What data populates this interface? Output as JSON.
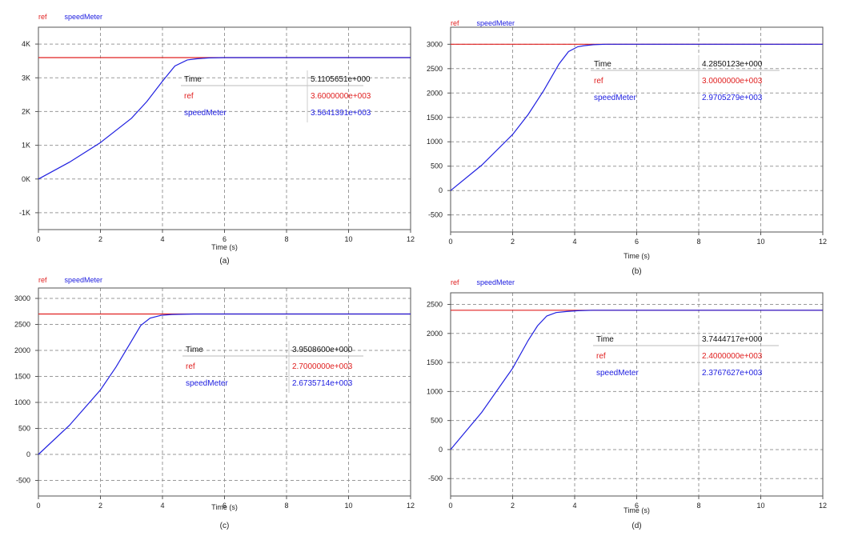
{
  "colors": {
    "ref": "#e02020",
    "meter": "#2020e0",
    "grid": "#9a9a9a",
    "frame": "#555555"
  },
  "chart_data": [
    {
      "type": "line",
      "caption": "(a)",
      "xlabel": "Time (s)",
      "xlim": [
        0,
        12
      ],
      "ylim": [
        -1500,
        4500
      ],
      "x_ticks": [
        0,
        2,
        4,
        6,
        8,
        10,
        12
      ],
      "x_tick_labels": [
        "0",
        "2",
        "4",
        "6",
        "8",
        "10",
        "12"
      ],
      "y_ticks": [
        -1000,
        0,
        1000,
        2000,
        3000,
        4000
      ],
      "y_tick_labels": [
        "-1K",
        "0K",
        "1K",
        "2K",
        "3K",
        "4K"
      ],
      "grid": true,
      "legend": [
        "ref",
        "speedMeter"
      ],
      "series": [
        {
          "name": "ref",
          "color": "#e02020",
          "x": [
            0,
            12
          ],
          "y": [
            3600,
            3600
          ]
        },
        {
          "name": "speedMeter",
          "color": "#2020e0",
          "x": [
            0,
            1,
            2,
            3,
            3.5,
            4,
            4.4,
            4.8,
            5.1,
            5.5,
            6,
            12
          ],
          "y": [
            0,
            500,
            1080,
            1800,
            2300,
            2900,
            3350,
            3530,
            3564,
            3590,
            3600,
            3600
          ]
        }
      ],
      "readout": {
        "rows": [
          {
            "label": "Time",
            "value": "5.1105651e+000"
          },
          {
            "label": "ref",
            "value": "3.6000000e+003"
          },
          {
            "label": "speedMeter",
            "value": "3.5641391e+003"
          }
        ]
      }
    },
    {
      "type": "line",
      "caption": "(b)",
      "xlabel": "Time (s)",
      "xlim": [
        0,
        12
      ],
      "ylim": [
        -850,
        3350
      ],
      "x_ticks": [
        0,
        2,
        4,
        6,
        8,
        10,
        12
      ],
      "x_tick_labels": [
        "0",
        "2",
        "4",
        "6",
        "8",
        "10",
        "12"
      ],
      "y_ticks": [
        -500,
        0,
        500,
        1000,
        1500,
        2000,
        2500,
        3000
      ],
      "y_tick_labels": [
        "-500",
        "0",
        "500",
        "1000",
        "1500",
        "2000",
        "2500",
        "3000"
      ],
      "grid": true,
      "legend": [
        "ref",
        "speedMeter"
      ],
      "series": [
        {
          "name": "ref",
          "color": "#e02020",
          "x": [
            0,
            12
          ],
          "y": [
            3000,
            3000
          ]
        },
        {
          "name": "speedMeter",
          "color": "#2020e0",
          "x": [
            0,
            1,
            2,
            2.5,
            3,
            3.5,
            3.8,
            4.1,
            4.3,
            4.6,
            5,
            12
          ],
          "y": [
            0,
            520,
            1150,
            1560,
            2050,
            2600,
            2850,
            2950,
            2971,
            2990,
            3000,
            3000
          ]
        }
      ],
      "readout": {
        "rows": [
          {
            "label": "Time",
            "value": "4.2850123e+000"
          },
          {
            "label": "ref",
            "value": "3.0000000e+003"
          },
          {
            "label": "speedMeter",
            "value": "2.9705279e+003"
          }
        ]
      }
    },
    {
      "type": "line",
      "caption": "(c)",
      "xlabel": "Time (s)",
      "xlim": [
        0,
        12
      ],
      "ylim": [
        -800,
        3200
      ],
      "x_ticks": [
        0,
        2,
        4,
        6,
        8,
        10,
        12
      ],
      "x_tick_labels": [
        "0",
        "2",
        "4",
        "6",
        "8",
        "10",
        "12"
      ],
      "y_ticks": [
        -500,
        0,
        500,
        1000,
        1500,
        2000,
        2500,
        3000
      ],
      "y_tick_labels": [
        "-500",
        "0",
        "500",
        "1000",
        "1500",
        "2000",
        "2500",
        "3000"
      ],
      "grid": true,
      "legend": [
        "ref",
        "speedMeter"
      ],
      "series": [
        {
          "name": "ref",
          "color": "#e02020",
          "x": [
            0,
            12
          ],
          "y": [
            2700,
            2700
          ]
        },
        {
          "name": "speedMeter",
          "color": "#2020e0",
          "x": [
            0,
            1,
            2,
            2.5,
            3,
            3.3,
            3.6,
            3.95,
            4.3,
            5,
            12
          ],
          "y": [
            0,
            560,
            1240,
            1680,
            2180,
            2480,
            2620,
            2674,
            2690,
            2700,
            2700
          ]
        }
      ],
      "readout": {
        "rows": [
          {
            "label": "Time",
            "value": "3.9508600e+000"
          },
          {
            "label": "ref",
            "value": "2.7000000e+003"
          },
          {
            "label": "speedMeter",
            "value": "2.6735714e+003"
          }
        ]
      }
    },
    {
      "type": "line",
      "caption": "(d)",
      "xlabel": "Time (s)",
      "xlim": [
        0,
        12
      ],
      "ylim": [
        -800,
        2700
      ],
      "x_ticks": [
        0,
        2,
        4,
        6,
        8,
        10,
        12
      ],
      "x_tick_labels": [
        "0",
        "2",
        "4",
        "6",
        "8",
        "10",
        "12"
      ],
      "y_ticks": [
        -500,
        0,
        500,
        1000,
        1500,
        2000,
        2500
      ],
      "y_tick_labels": [
        "-500",
        "0",
        "500",
        "1000",
        "1500",
        "2000",
        "2500"
      ],
      "grid": true,
      "legend": [
        "ref",
        "speedMeter"
      ],
      "series": [
        {
          "name": "ref",
          "color": "#e02020",
          "x": [
            0,
            12
          ],
          "y": [
            2400,
            2400
          ]
        },
        {
          "name": "speedMeter",
          "color": "#2020e0",
          "x": [
            0,
            1,
            2,
            2.5,
            2.8,
            3.1,
            3.4,
            3.74,
            4.1,
            4.6,
            12
          ],
          "y": [
            0,
            640,
            1400,
            1880,
            2130,
            2300,
            2360,
            2377,
            2392,
            2400,
            2400
          ]
        }
      ],
      "readout": {
        "rows": [
          {
            "label": "Time",
            "value": "3.7444717e+000"
          },
          {
            "label": "ref",
            "value": "2.4000000e+003"
          },
          {
            "label": "speedMeter",
            "value": "2.3767627e+003"
          }
        ]
      }
    }
  ]
}
